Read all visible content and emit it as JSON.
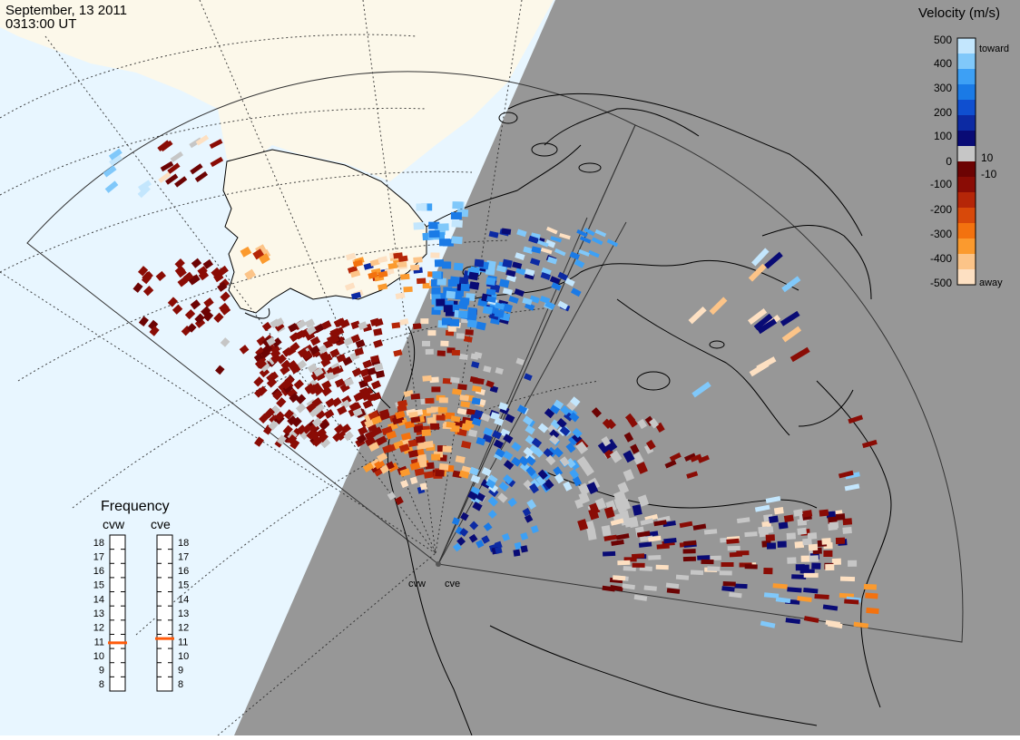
{
  "header": {
    "date": "September, 13 2011",
    "time": "0313:00 UT"
  },
  "colors": {
    "ocean": "#e8f6ff",
    "land": "#fcf8ea",
    "night": "#979797",
    "coast": "#000000",
    "ground_scatter": "#c6c6c6"
  },
  "legend": {
    "title": "Velocity (m/s)",
    "tick_labels": [
      "500",
      "400",
      "300",
      "200",
      "100",
      "10",
      "0",
      "-10",
      "-100",
      "-200",
      "-300",
      "-400",
      "-500"
    ],
    "toward_label": "toward",
    "away_label": "away",
    "color_scale": [
      "#fde0c2",
      "#fcc488",
      "#fb9a2e",
      "#f3720f",
      "#d8490a",
      "#b52608",
      "#8a0c05",
      "#6c0303",
      "#c6c6c6",
      "#090b75",
      "#0c2aa3",
      "#0f4fd0",
      "#1a7ae6",
      "#3da0f5",
      "#80c8fa",
      "#c3e6fd"
    ]
  },
  "frequency_panel": {
    "title": "Frequency",
    "radars": [
      {
        "name": "cvw",
        "freq_mhz": 10.9
      },
      {
        "name": "cve",
        "freq_mhz": 11.2
      }
    ],
    "ticks": [
      "18",
      "17",
      "16",
      "15",
      "14",
      "13",
      "12",
      "11",
      "10",
      "9",
      "8"
    ],
    "marker_color": "#ff5a0a"
  },
  "radar_sites": [
    {
      "label": "cvw"
    },
    {
      "label": "cve"
    }
  ]
}
